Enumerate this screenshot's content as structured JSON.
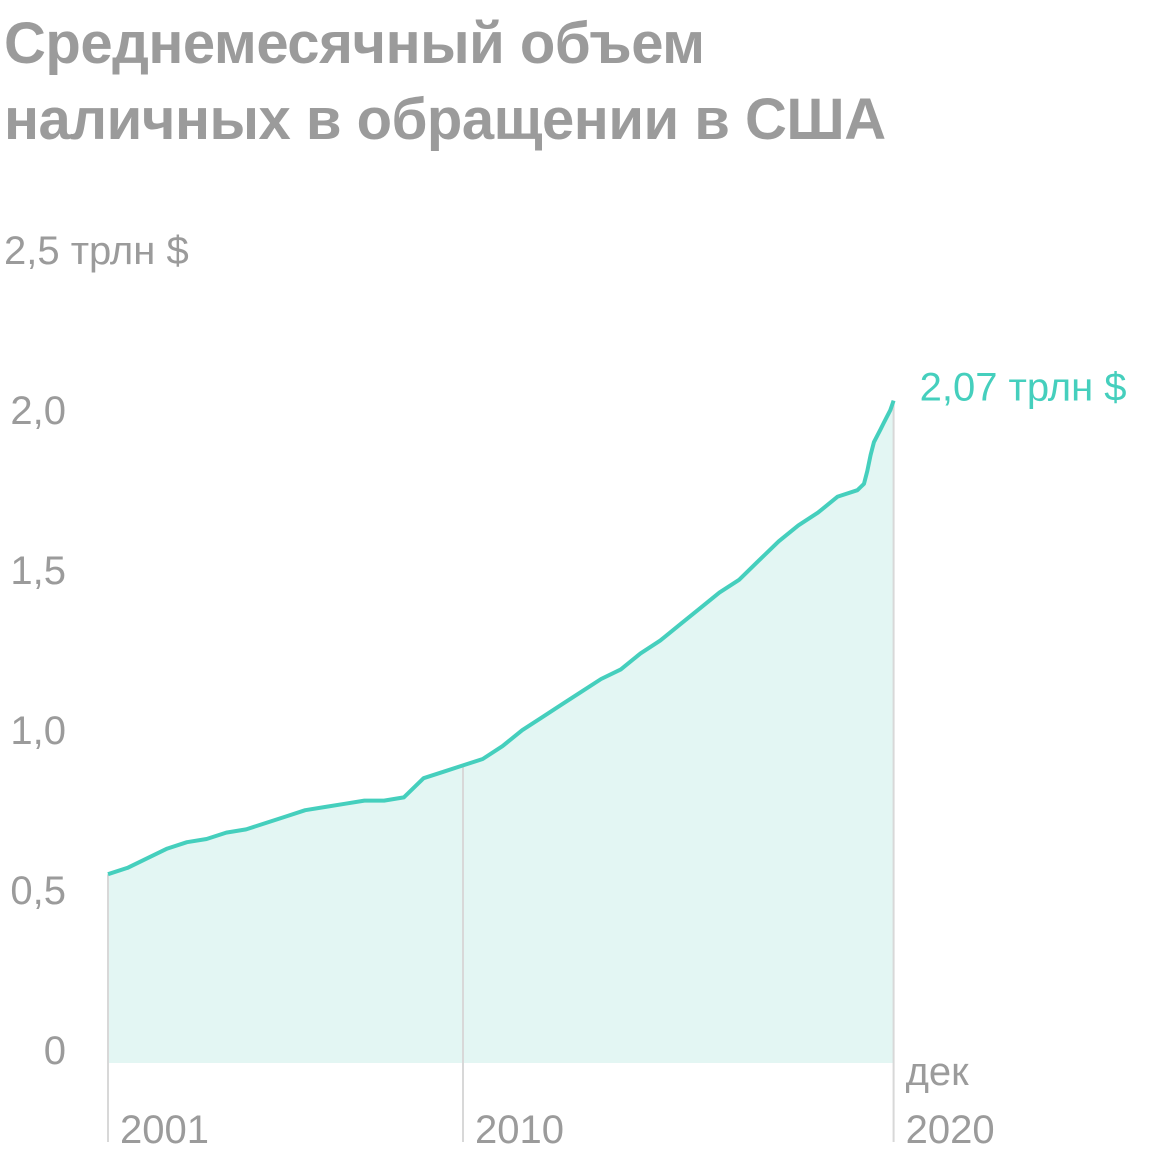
{
  "chart_data": {
    "type": "area",
    "title": "Среднемесячный объем\nналичных в обращении в США",
    "x": [
      "2001-01",
      "2001-07",
      "2002-01",
      "2002-07",
      "2003-01",
      "2003-07",
      "2004-01",
      "2004-07",
      "2005-01",
      "2005-07",
      "2006-01",
      "2006-07",
      "2007-01",
      "2007-07",
      "2008-01",
      "2008-07",
      "2009-01",
      "2009-07",
      "2010-01",
      "2010-07",
      "2011-01",
      "2011-07",
      "2012-01",
      "2012-07",
      "2013-01",
      "2013-07",
      "2014-01",
      "2014-07",
      "2015-01",
      "2015-07",
      "2016-01",
      "2016-07",
      "2017-01",
      "2017-07",
      "2018-01",
      "2018-07",
      "2019-01",
      "2019-07",
      "2020-01",
      "2020-02",
      "2020-03",
      "2020-04",
      "2020-05",
      "2020-06",
      "2020-07",
      "2020-08",
      "2020-09",
      "2020-10",
      "2020-11",
      "2020-12"
    ],
    "values": [
      0.59,
      0.61,
      0.64,
      0.67,
      0.69,
      0.7,
      0.72,
      0.73,
      0.75,
      0.77,
      0.79,
      0.8,
      0.81,
      0.82,
      0.82,
      0.83,
      0.89,
      0.91,
      0.93,
      0.95,
      0.99,
      1.04,
      1.08,
      1.12,
      1.16,
      1.2,
      1.23,
      1.28,
      1.32,
      1.37,
      1.42,
      1.47,
      1.51,
      1.57,
      1.63,
      1.68,
      1.72,
      1.77,
      1.79,
      1.8,
      1.81,
      1.85,
      1.9,
      1.94,
      1.96,
      1.98,
      2.0,
      2.02,
      2.04,
      2.07
    ],
    "annotation": "2,07 трлн $",
    "color": "#45cfbd",
    "fill": "#e3f6f3",
    "xlim": [
      "2001-01",
      "2020-12"
    ],
    "xticks": [
      {
        "value": "2001-01",
        "label": "2001"
      },
      {
        "value": "2010-01",
        "label": "2010"
      },
      {
        "value": "2020-12",
        "label": "2020"
      }
    ],
    "x_end_label": "дек",
    "ylim": [
      0,
      2.5
    ],
    "yticks": [
      0,
      {
        "value": 0.5,
        "label": "0,5"
      },
      {
        "value": 1,
        "label": "1,0"
      },
      {
        "value": 1.5,
        "label": "1,5"
      },
      {
        "value": 2,
        "label": "2,0"
      },
      {
        "value": 2.5,
        "label": "2,5 трлн $"
      }
    ]
  }
}
